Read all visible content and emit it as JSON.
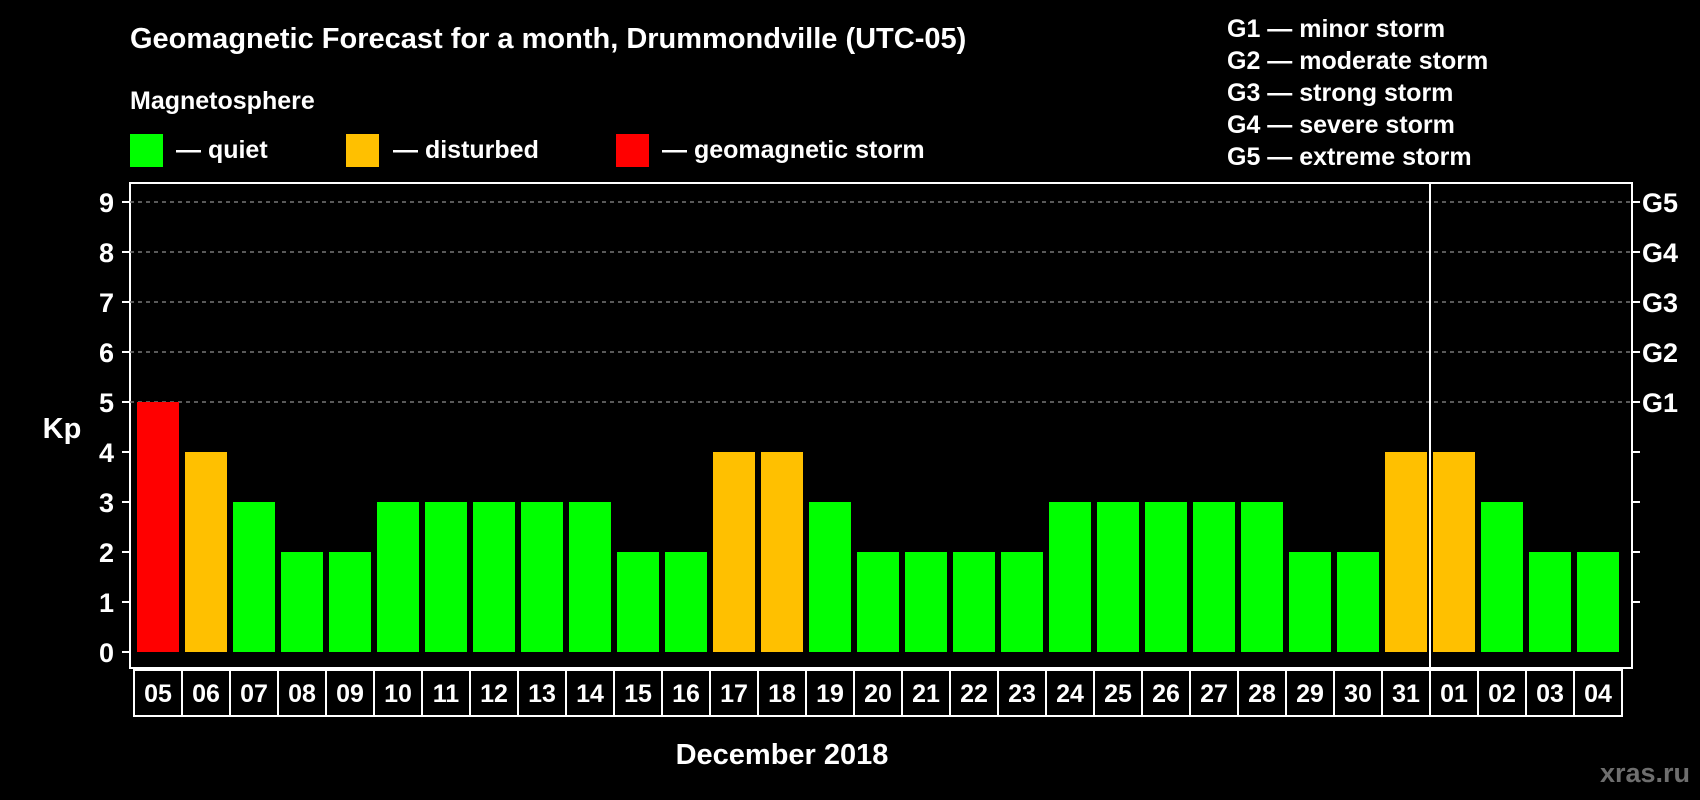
{
  "title": "Geomagnetic Forecast for a month, Drummondville (UTC-05)",
  "legend": {
    "heading": "Magnetosphere",
    "items": [
      {
        "label": "— quiet",
        "color": "#00ff00"
      },
      {
        "label": "— disturbed",
        "color": "#ffc000"
      },
      {
        "label": "— geomagnetic storm",
        "color": "#ff0000"
      }
    ]
  },
  "storm_scale": [
    "G1 — minor storm",
    "G2 — moderate storm",
    "G3 — strong storm",
    "G4 — severe storm",
    "G5 — extreme storm"
  ],
  "watermark": "xras.ru",
  "chart_data": {
    "type": "bar",
    "title": "Geomagnetic Forecast for a month, Drummondville (UTC-05)",
    "ylabel": "Kp",
    "xlabel": "December 2018",
    "ylim": [
      0,
      9
    ],
    "yticks": [
      0,
      1,
      2,
      3,
      4,
      5,
      6,
      7,
      8,
      9
    ],
    "right_ticks": [
      {
        "value": 5,
        "label": "G1"
      },
      {
        "value": 6,
        "label": "G2"
      },
      {
        "value": 7,
        "label": "G3"
      },
      {
        "value": 8,
        "label": "G4"
      },
      {
        "value": 9,
        "label": "G5"
      }
    ],
    "month_divider_after": "31",
    "categories": [
      "05",
      "06",
      "07",
      "08",
      "09",
      "10",
      "11",
      "12",
      "13",
      "14",
      "15",
      "16",
      "17",
      "18",
      "19",
      "20",
      "21",
      "22",
      "23",
      "24",
      "25",
      "26",
      "27",
      "28",
      "29",
      "30",
      "31",
      "01",
      "02",
      "03",
      "04"
    ],
    "values": [
      5,
      4,
      3,
      2,
      2,
      3,
      3,
      3,
      3,
      3,
      2,
      2,
      4,
      4,
      3,
      2,
      2,
      2,
      2,
      3,
      3,
      3,
      3,
      3,
      2,
      2,
      4,
      4,
      3,
      2,
      2
    ],
    "level_colors": {
      "quiet": "#00ff00",
      "disturbed": "#ffc000",
      "storm": "#ff0000"
    },
    "thresholds": {
      "disturbed": 4,
      "storm": 5
    }
  }
}
